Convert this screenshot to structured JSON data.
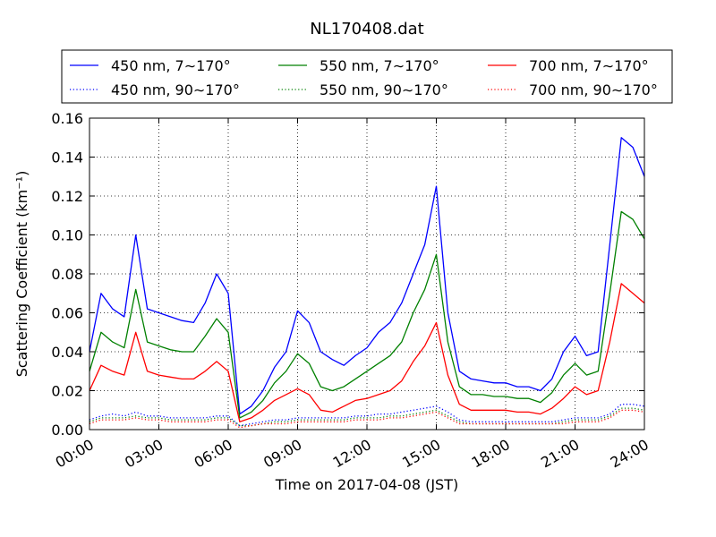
{
  "chart_data": {
    "type": "line",
    "title": "NL170408.dat",
    "xlabel": "Time on 2017-04-08 (JST)",
    "ylabel": "Scattering Coefficient (km⁻¹)",
    "xlim": [
      0,
      24
    ],
    "ylim": [
      0,
      0.16
    ],
    "x_ticks": [
      "00:00",
      "03:00",
      "06:00",
      "09:00",
      "12:00",
      "15:00",
      "18:00",
      "21:00",
      "24:00"
    ],
    "x_tick_hours": [
      0,
      3,
      6,
      9,
      12,
      15,
      18,
      21,
      24
    ],
    "y_ticks": [
      "0.00",
      "0.02",
      "0.04",
      "0.06",
      "0.08",
      "0.10",
      "0.12",
      "0.14",
      "0.16"
    ],
    "y_tick_values": [
      0,
      0.02,
      0.04,
      0.06,
      0.08,
      0.1,
      0.12,
      0.14,
      0.16
    ],
    "grid": true,
    "legend_position": "top",
    "x_hours": [
      0,
      0.5,
      1,
      1.5,
      2,
      2.5,
      3,
      3.5,
      4,
      4.5,
      5,
      5.5,
      6,
      6.5,
      7,
      7.5,
      8,
      8.5,
      9,
      9.5,
      10,
      10.5,
      11,
      11.5,
      12,
      12.5,
      13,
      13.5,
      14,
      14.5,
      15,
      15.5,
      16,
      16.5,
      17,
      17.5,
      18,
      18.5,
      19,
      19.5,
      20,
      20.5,
      21,
      21.5,
      22,
      22.5,
      23,
      23.5,
      24
    ],
    "series": [
      {
        "name": "450 nm, 7∼170°",
        "color": "#0000ff",
        "style": "solid",
        "values": [
          0.04,
          0.07,
          0.062,
          0.058,
          0.1,
          0.062,
          0.06,
          0.058,
          0.056,
          0.055,
          0.065,
          0.08,
          0.07,
          0.008,
          0.012,
          0.02,
          0.032,
          0.04,
          0.061,
          0.055,
          0.04,
          0.036,
          0.033,
          0.038,
          0.042,
          0.05,
          0.055,
          0.065,
          0.08,
          0.095,
          0.125,
          0.06,
          0.03,
          0.026,
          0.025,
          0.024,
          0.024,
          0.022,
          0.022,
          0.02,
          0.026,
          0.04,
          0.048,
          0.038,
          0.04,
          0.095,
          0.15,
          0.145,
          0.13
        ]
      },
      {
        "name": "450 nm, 90∼170°",
        "color": "#0000ff",
        "style": "dotted",
        "values": [
          0.005,
          0.007,
          0.008,
          0.007,
          0.009,
          0.007,
          0.007,
          0.006,
          0.006,
          0.006,
          0.006,
          0.007,
          0.007,
          0.002,
          0.003,
          0.004,
          0.005,
          0.005,
          0.006,
          0.006,
          0.006,
          0.006,
          0.006,
          0.007,
          0.007,
          0.008,
          0.008,
          0.009,
          0.01,
          0.011,
          0.012,
          0.009,
          0.005,
          0.004,
          0.004,
          0.004,
          0.004,
          0.004,
          0.004,
          0.004,
          0.004,
          0.005,
          0.006,
          0.006,
          0.006,
          0.008,
          0.013,
          0.013,
          0.012
        ]
      },
      {
        "name": "550 nm, 7∼170°",
        "color": "#008000",
        "style": "solid",
        "values": [
          0.03,
          0.05,
          0.045,
          0.042,
          0.072,
          0.045,
          0.043,
          0.041,
          0.04,
          0.04,
          0.048,
          0.057,
          0.05,
          0.006,
          0.009,
          0.015,
          0.024,
          0.03,
          0.039,
          0.034,
          0.022,
          0.02,
          0.022,
          0.026,
          0.03,
          0.034,
          0.038,
          0.045,
          0.06,
          0.072,
          0.09,
          0.045,
          0.022,
          0.018,
          0.018,
          0.017,
          0.017,
          0.016,
          0.016,
          0.014,
          0.019,
          0.028,
          0.034,
          0.028,
          0.03,
          0.07,
          0.112,
          0.108,
          0.098
        ]
      },
      {
        "name": "550 nm, 90∼170°",
        "color": "#008000",
        "style": "dotted",
        "values": [
          0.004,
          0.006,
          0.006,
          0.006,
          0.007,
          0.006,
          0.006,
          0.005,
          0.005,
          0.005,
          0.005,
          0.006,
          0.006,
          0.002,
          0.002,
          0.003,
          0.004,
          0.004,
          0.005,
          0.005,
          0.005,
          0.005,
          0.005,
          0.006,
          0.006,
          0.006,
          0.007,
          0.007,
          0.008,
          0.009,
          0.01,
          0.007,
          0.004,
          0.003,
          0.003,
          0.003,
          0.003,
          0.003,
          0.003,
          0.003,
          0.003,
          0.004,
          0.005,
          0.005,
          0.005,
          0.007,
          0.011,
          0.011,
          0.01
        ]
      },
      {
        "name": "700 nm, 7∼170°",
        "color": "#ff0000",
        "style": "solid",
        "values": [
          0.02,
          0.033,
          0.03,
          0.028,
          0.05,
          0.03,
          0.028,
          0.027,
          0.026,
          0.026,
          0.03,
          0.035,
          0.03,
          0.004,
          0.006,
          0.01,
          0.015,
          0.018,
          0.021,
          0.018,
          0.01,
          0.009,
          0.012,
          0.015,
          0.016,
          0.018,
          0.02,
          0.025,
          0.035,
          0.043,
          0.055,
          0.028,
          0.013,
          0.01,
          0.01,
          0.01,
          0.01,
          0.009,
          0.009,
          0.008,
          0.011,
          0.016,
          0.022,
          0.018,
          0.02,
          0.045,
          0.075,
          0.07,
          0.065
        ]
      },
      {
        "name": "700 nm, 90∼170°",
        "color": "#ff0000",
        "style": "dotted",
        "values": [
          0.003,
          0.005,
          0.005,
          0.005,
          0.006,
          0.005,
          0.005,
          0.004,
          0.004,
          0.004,
          0.004,
          0.005,
          0.005,
          0.001,
          0.002,
          0.003,
          0.003,
          0.003,
          0.004,
          0.004,
          0.004,
          0.004,
          0.004,
          0.005,
          0.005,
          0.005,
          0.006,
          0.006,
          0.007,
          0.008,
          0.009,
          0.006,
          0.003,
          0.003,
          0.003,
          0.003,
          0.003,
          0.003,
          0.003,
          0.003,
          0.003,
          0.003,
          0.004,
          0.004,
          0.004,
          0.006,
          0.01,
          0.01,
          0.009
        ]
      }
    ]
  }
}
